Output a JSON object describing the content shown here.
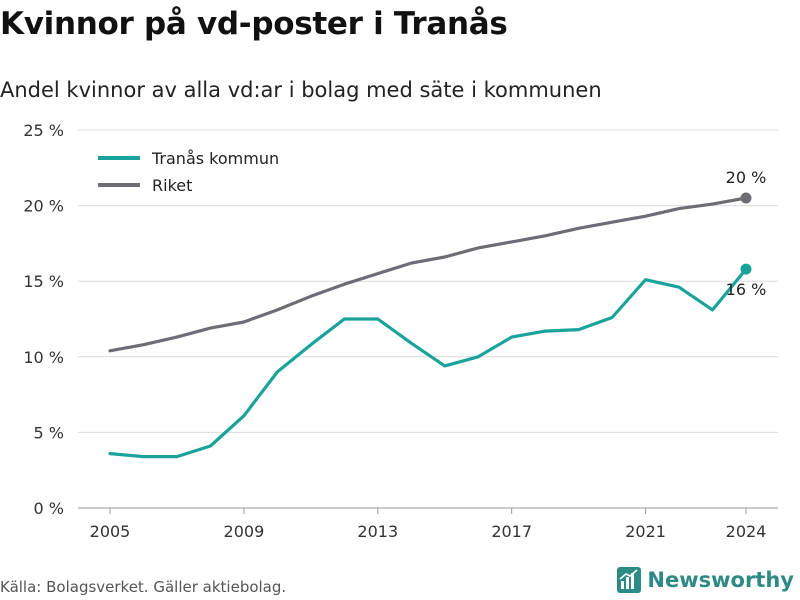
{
  "title": "Kvinnor på vd-poster i Tranås",
  "subtitle": "Andel kvinnor av alla vd:ar i bolag med säte i kommunen",
  "source": "Källa: Bolagsverket. Gäller aktiebolag.",
  "brand": {
    "name": "Newsworthy",
    "icon": "bar-chart-logo-icon",
    "color": "#2e8a85"
  },
  "chart_data": {
    "type": "line",
    "title": "Kvinnor på vd-poster i Tranås",
    "subtitle": "Andel kvinnor av alla vd:ar i bolag med säte i kommunen",
    "x": [
      2005,
      2006,
      2007,
      2008,
      2009,
      2010,
      2011,
      2012,
      2013,
      2014,
      2015,
      2016,
      2017,
      2018,
      2019,
      2020,
      2021,
      2022,
      2023,
      2024
    ],
    "x_ticks": [
      "2005",
      "2009",
      "2013",
      "2017",
      "2021",
      "2024"
    ],
    "y_ticks": [
      "0 %",
      "5 %",
      "10 %",
      "15 %",
      "20 %",
      "25 %"
    ],
    "ylim": [
      0,
      25
    ],
    "xlim": [
      2005,
      2024
    ],
    "grid": true,
    "legend_position": "top-left",
    "series": [
      {
        "name": "Tranås kommun",
        "color": "#1aa39a",
        "values": [
          3.6,
          3.4,
          3.4,
          4.1,
          6.1,
          9.0,
          10.8,
          12.5,
          12.5,
          10.9,
          9.4,
          10.0,
          11.3,
          11.7,
          11.8,
          12.6,
          15.1,
          14.6,
          13.1,
          15.8
        ],
        "end_label": "16 %"
      },
      {
        "name": "Riket",
        "color": "#6e6d73",
        "values": [
          10.4,
          10.8,
          11.3,
          11.9,
          12.3,
          13.1,
          14.0,
          14.8,
          15.5,
          16.2,
          16.6,
          17.2,
          17.6,
          18.0,
          18.5,
          18.9,
          19.3,
          19.8,
          20.1,
          20.5
        ],
        "end_label": "20 %"
      }
    ]
  }
}
